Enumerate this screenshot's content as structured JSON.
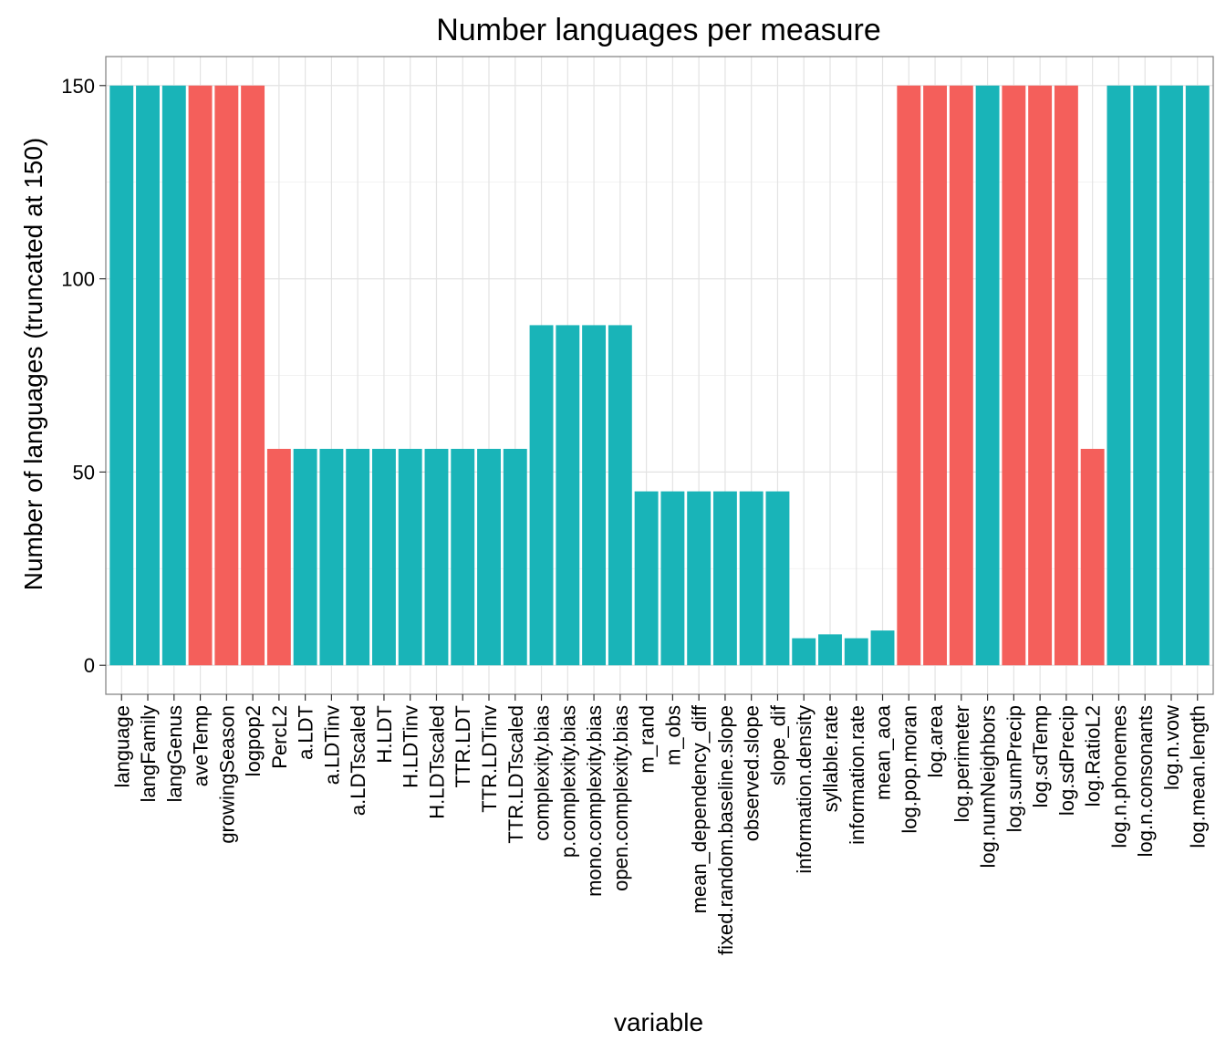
{
  "chart_data": {
    "type": "bar",
    "title": "Number languages per measure",
    "xlabel": "variable",
    "ylabel": "Number of languages (truncated at 150)",
    "ylim": [
      -7.5,
      157.5
    ],
    "yticks": [
      0,
      50,
      100,
      150
    ],
    "grid": true,
    "legend": "none",
    "colors": {
      "teal": "#19B4B8",
      "red": "#F45F5B"
    },
    "categories": [
      "language",
      "langFamily",
      "langGenus",
      "aveTemp",
      "growingSeason",
      "logpop2",
      "PercL2",
      "a.LDT",
      "a.LDTinv",
      "a.LDTscaled",
      "H.LDT",
      "H.LDTinv",
      "H.LDTscaled",
      "TTR.LDT",
      "TTR.LDTinv",
      "TTR.LDTscaled",
      "complexity.bias",
      "p.complexity.bias",
      "mono.complexity.bias",
      "open.complexity.bias",
      "m_rand",
      "m_obs",
      "mean_dependency_diff",
      "fixed.random.baseline.slope",
      "observed.slope",
      "slope_dif",
      "information.density",
      "syllable.rate",
      "information.rate",
      "mean_aoa",
      "log.pop.moran",
      "log.area",
      "log.perimeter",
      "log.numNeighbors",
      "log.sumPrecip",
      "log.sdTemp",
      "log.sdPrecip",
      "log.RatioL2",
      "log.n.phonemes",
      "log.n.consonants",
      "log.n.vow",
      "log.mean.length"
    ],
    "values": [
      150,
      150,
      150,
      150,
      150,
      150,
      56,
      56,
      56,
      56,
      56,
      56,
      56,
      56,
      56,
      56,
      88,
      88,
      88,
      88,
      45,
      45,
      45,
      45,
      45,
      45,
      7,
      8,
      7,
      9,
      150,
      150,
      150,
      150,
      150,
      150,
      150,
      56,
      150,
      150,
      150,
      150
    ],
    "bar_colors": [
      "teal",
      "teal",
      "teal",
      "red",
      "red",
      "red",
      "red",
      "teal",
      "teal",
      "teal",
      "teal",
      "teal",
      "teal",
      "teal",
      "teal",
      "teal",
      "teal",
      "teal",
      "teal",
      "teal",
      "teal",
      "teal",
      "teal",
      "teal",
      "teal",
      "teal",
      "teal",
      "teal",
      "teal",
      "teal",
      "red",
      "red",
      "red",
      "teal",
      "red",
      "red",
      "red",
      "red",
      "teal",
      "teal",
      "teal",
      "teal"
    ]
  }
}
